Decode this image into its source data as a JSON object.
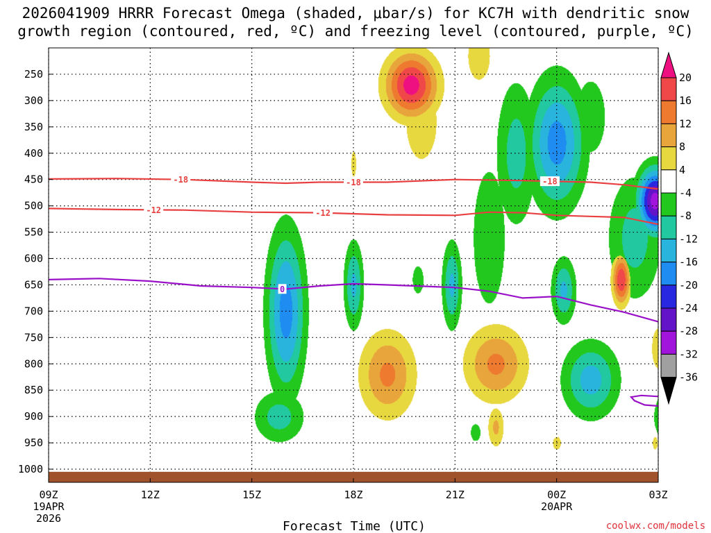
{
  "chart_data": {
    "type": "heatmap",
    "title_line1": "2026041909 HRRR Forecast Omega (shaded, μbar/s) for KC7H with dendritic snow",
    "title_line2": "growth region (contoured, red, ºC) and freezing level (contoured, purple, ºC)",
    "xlabel": "Forecast Time (UTC)",
    "ylabel": "",
    "credit": "coolwx.com/models",
    "x_range_hours": [
      0,
      18
    ],
    "y_range_hpa": [
      200,
      1025
    ],
    "x_ticks": [
      {
        "hour": 0,
        "label": "09Z",
        "sub1": "19APR",
        "sub2": "2026"
      },
      {
        "hour": 3,
        "label": "12Z",
        "sub1": "",
        "sub2": ""
      },
      {
        "hour": 6,
        "label": "15Z",
        "sub1": "",
        "sub2": ""
      },
      {
        "hour": 9,
        "label": "18Z",
        "sub1": "",
        "sub2": ""
      },
      {
        "hour": 12,
        "label": "21Z",
        "sub1": "",
        "sub2": ""
      },
      {
        "hour": 15,
        "label": "00Z",
        "sub1": "20APR",
        "sub2": ""
      },
      {
        "hour": 18,
        "label": "03Z",
        "sub1": "",
        "sub2": ""
      }
    ],
    "y_ticks": [
      250,
      300,
      350,
      400,
      450,
      500,
      550,
      600,
      650,
      700,
      750,
      800,
      850,
      900,
      950,
      1000
    ],
    "colorbar": {
      "labels": [
        "20",
        "16",
        "12",
        "8",
        "4",
        "-4",
        "-8",
        "-12",
        "-16",
        "-20",
        "-24",
        "-28",
        "-32",
        "-36"
      ],
      "bins": [
        {
          "from": 20,
          "to": 24,
          "color": "#ee1080"
        },
        {
          "from": 16,
          "to": 20,
          "color": "#f04848"
        },
        {
          "from": 12,
          "to": 16,
          "color": "#ee7a30"
        },
        {
          "from": 8,
          "to": 12,
          "color": "#e8a53c"
        },
        {
          "from": 4,
          "to": 8,
          "color": "#e8d840"
        },
        {
          "from": -4,
          "to": 4,
          "color": "#ffffff"
        },
        {
          "from": -8,
          "to": -4,
          "color": "#22c81e"
        },
        {
          "from": -12,
          "to": -8,
          "color": "#22c8a0"
        },
        {
          "from": -16,
          "to": -12,
          "color": "#28b4dc"
        },
        {
          "from": -20,
          "to": -16,
          "color": "#1e8cf0"
        },
        {
          "from": -24,
          "to": -20,
          "color": "#2828e0"
        },
        {
          "from": -28,
          "to": -24,
          "color": "#6414c8"
        },
        {
          "from": -32,
          "to": -28,
          "color": "#a014dc"
        },
        {
          "from": -36,
          "to": -32,
          "color": "#a0a0a0"
        },
        {
          "from": -40,
          "to": -36,
          "color": "#000000"
        }
      ]
    },
    "omega_features": [
      {
        "hour": 10.7,
        "hpa": 270,
        "peak": 22,
        "sx": 0.75,
        "sy": 60
      },
      {
        "hour": 11.0,
        "hpa": 340,
        "peak": 6,
        "sx": 0.7,
        "sy": 110
      },
      {
        "hour": 12.7,
        "hpa": 215,
        "peak": 6,
        "sx": 0.5,
        "sy": 70
      },
      {
        "hour": 9.0,
        "hpa": 420,
        "peak": 5,
        "sx": 0.15,
        "sy": 50
      },
      {
        "hour": 16.9,
        "hpa": 640,
        "peak": 20,
        "sx": 0.25,
        "sy": 45
      },
      {
        "hour": 10.0,
        "hpa": 820,
        "peak": 13,
        "sx": 0.8,
        "sy": 80
      },
      {
        "hour": 13.2,
        "hpa": 800,
        "peak": 13,
        "sx": 0.9,
        "sy": 70
      },
      {
        "hour": 13.2,
        "hpa": 920,
        "peak": 9,
        "sx": 0.25,
        "sy": 40
      },
      {
        "hour": 18.0,
        "hpa": 770,
        "peak": 6,
        "sx": 0.3,
        "sy": 60
      },
      {
        "hour": 15.0,
        "hpa": 950,
        "peak": 5,
        "sx": 0.25,
        "sy": 25
      },
      {
        "hour": 17.9,
        "hpa": 950,
        "peak": 5,
        "sx": 0.15,
        "sy": 25
      },
      {
        "hour": 7.0,
        "hpa": 700,
        "peak": -18,
        "sx": 0.55,
        "sy": 150
      },
      {
        "hour": 6.8,
        "hpa": 900,
        "peak": -10,
        "sx": 0.75,
        "sy": 50
      },
      {
        "hour": 9.0,
        "hpa": 650,
        "peak": -13,
        "sx": 0.28,
        "sy": 80
      },
      {
        "hour": 11.9,
        "hpa": 650,
        "peak": -13,
        "sx": 0.28,
        "sy": 80
      },
      {
        "hour": 10.9,
        "hpa": 640,
        "peak": -6,
        "sx": 0.25,
        "sy": 40
      },
      {
        "hour": 12.6,
        "hpa": 930,
        "peak": -6,
        "sx": 0.22,
        "sy": 25
      },
      {
        "hour": 15.0,
        "hpa": 380,
        "peak": -18,
        "sx": 0.8,
        "sy": 120
      },
      {
        "hour": 13.8,
        "hpa": 400,
        "peak": -10,
        "sx": 0.6,
        "sy": 140
      },
      {
        "hour": 13.0,
        "hpa": 560,
        "peak": -8,
        "sx": 0.55,
        "sy": 150
      },
      {
        "hour": 16.0,
        "hpa": 330,
        "peak": -8,
        "sx": 0.5,
        "sy": 80
      },
      {
        "hour": 17.9,
        "hpa": 490,
        "peak": -30,
        "sx": 0.5,
        "sy": 60
      },
      {
        "hour": 17.3,
        "hpa": 560,
        "peak": -10,
        "sx": 0.8,
        "sy": 120
      },
      {
        "hour": 15.2,
        "hpa": 660,
        "peak": -13,
        "sx": 0.35,
        "sy": 60
      },
      {
        "hour": 16.0,
        "hpa": 830,
        "peak": -14,
        "sx": 0.8,
        "sy": 70
      },
      {
        "hour": 18.3,
        "hpa": 900,
        "peak": -10,
        "sx": 0.45,
        "sy": 50
      }
    ],
    "contours": [
      {
        "name": "dgz-minus-18",
        "color": "#e84040",
        "label": "-18",
        "label_hours": [
          3.9,
          9.0,
          14.8
        ],
        "points": [
          [
            0,
            449
          ],
          [
            2,
            448
          ],
          [
            4,
            450
          ],
          [
            6,
            455
          ],
          [
            7,
            457
          ],
          [
            8,
            455
          ],
          [
            10,
            455
          ],
          [
            12,
            450
          ],
          [
            14,
            452
          ],
          [
            16,
            455
          ],
          [
            17,
            460
          ],
          [
            18,
            468
          ]
        ]
      },
      {
        "name": "dgz-minus-12",
        "color": "#e84040",
        "label": "-12",
        "label_hours": [
          3.1,
          8.1
        ],
        "points": [
          [
            0,
            505
          ],
          [
            2,
            507
          ],
          [
            4,
            508
          ],
          [
            6,
            512
          ],
          [
            8,
            513
          ],
          [
            10,
            517
          ],
          [
            12,
            518
          ],
          [
            13,
            512
          ],
          [
            14,
            513
          ],
          [
            15,
            518
          ],
          [
            16,
            520
          ],
          [
            17,
            522
          ],
          [
            18,
            535
          ]
        ]
      },
      {
        "name": "freezing-level-0",
        "color": "#9a10c8",
        "label": "0",
        "label_hours": [
          6.9
        ],
        "points": [
          [
            0,
            640
          ],
          [
            1.5,
            638
          ],
          [
            3,
            643
          ],
          [
            4.5,
            652
          ],
          [
            6,
            655
          ],
          [
            7,
            658
          ],
          [
            8,
            652
          ],
          [
            9,
            648
          ],
          [
            10,
            650
          ],
          [
            12,
            655
          ],
          [
            13,
            662
          ],
          [
            14,
            675
          ],
          [
            15,
            672
          ],
          [
            16,
            688
          ],
          [
            17,
            702
          ],
          [
            18,
            720
          ]
        ]
      },
      {
        "name": "freezing-level-low",
        "color": "#9a10c8",
        "label": "",
        "label_hours": [],
        "points": [
          [
            18,
            880
          ],
          [
            17.6,
            878
          ],
          [
            17.3,
            870
          ],
          [
            17.2,
            863
          ],
          [
            17.5,
            860
          ],
          [
            18,
            862
          ]
        ]
      }
    ],
    "terrain": {
      "color": "#a0522d",
      "top_hpa": 1005
    }
  }
}
